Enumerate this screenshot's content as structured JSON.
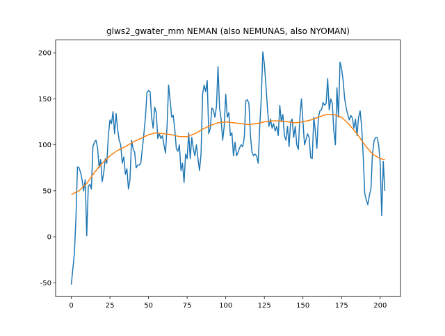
{
  "chart_data": {
    "type": "line",
    "title": "glws2_gwater_mm NEMAN (also NEMUNAS, also NYOMAN)",
    "x": [
      0,
      1,
      2,
      3,
      4,
      5,
      6,
      7,
      8,
      9,
      10,
      11,
      12,
      13,
      14,
      15,
      16,
      17,
      18,
      19,
      20,
      21,
      22,
      23,
      24,
      25,
      26,
      27,
      28,
      29,
      30,
      31,
      32,
      33,
      34,
      35,
      36,
      37,
      38,
      39,
      40,
      41,
      42,
      43,
      44,
      45,
      46,
      47,
      48,
      49,
      50,
      51,
      52,
      53,
      54,
      55,
      56,
      57,
      58,
      59,
      60,
      61,
      62,
      63,
      64,
      65,
      66,
      67,
      68,
      69,
      70,
      71,
      72,
      73,
      74,
      75,
      76,
      77,
      78,
      79,
      80,
      81,
      82,
      83,
      84,
      85,
      86,
      87,
      88,
      89,
      90,
      91,
      92,
      93,
      94,
      95,
      96,
      97,
      98,
      99,
      100,
      101,
      102,
      103,
      104,
      105,
      106,
      107,
      108,
      109,
      110,
      111,
      112,
      113,
      114,
      115,
      116,
      117,
      118,
      119,
      120,
      121,
      122,
      123,
      124,
      125,
      126,
      127,
      128,
      129,
      130,
      131,
      132,
      133,
      134,
      135,
      136,
      137,
      138,
      139,
      140,
      141,
      142,
      143,
      144,
      145,
      146,
      147,
      148,
      149,
      150,
      151,
      152,
      153,
      154,
      155,
      156,
      157,
      158,
      159,
      160,
      161,
      162,
      163,
      164,
      165,
      166,
      167,
      168,
      169,
      170,
      171,
      172,
      173,
      174,
      175,
      176,
      177,
      178,
      179,
      180,
      181,
      182,
      183,
      184,
      185,
      186,
      187,
      188,
      189,
      190,
      191,
      192,
      193,
      194,
      195,
      196,
      197,
      198,
      199,
      200,
      201,
      202,
      203
    ],
    "series": [
      {
        "color": "#1f77b4",
        "values": [
          -52,
          -35,
          -18,
          20,
          76,
          75,
          70,
          62,
          50,
          62,
          1,
          55,
          57,
          52,
          98,
          103,
          105,
          97,
          75,
          84,
          60,
          70,
          85,
          80,
          110,
          127,
          123,
          136,
          112,
          134,
          117,
          105,
          100,
          80,
          87,
          68,
          74,
          52,
          62,
          105,
          96,
          92,
          75,
          78,
          78,
          80,
          96,
          112,
          130,
          157,
          159,
          158,
          130,
          118,
          141,
          135,
          107,
          112,
          107,
          110,
          100,
          91,
          120,
          165,
          148,
          130,
          132,
          117,
          96,
          93,
          100,
          72,
          80,
          59,
          90,
          85,
          113,
          85,
          108,
          96,
          88,
          100,
          85,
          72,
          90,
          155,
          165,
          158,
          170,
          112,
          118,
          140,
          138,
          130,
          142,
          185,
          140,
          128,
          105,
          120,
          155,
          130,
          135,
          110,
          113,
          88,
          103,
          88,
          92,
          97,
          100,
          98,
          108,
          148,
          149,
          145,
          110,
          92,
          88,
          90,
          88,
          80,
          120,
          150,
          201,
          188,
          165,
          140,
          120,
          128,
          118,
          123,
          115,
          120,
          110,
          143,
          125,
          133,
          110,
          105,
          120,
          98,
          125,
          128,
          108,
          120,
          100,
          95,
          130,
          150,
          125,
          100,
          106,
          112,
          108,
          86,
          85,
          130,
          115,
          96,
          130,
          137,
          138,
          146,
          143,
          145,
          172,
          138,
          150,
          145,
          115,
          100,
          162,
          130,
          190,
          183,
          170,
          150,
          140,
          133,
          127,
          132,
          129,
          118,
          128,
          110,
          130,
          137,
          120,
          88,
          47,
          40,
          35,
          45,
          52,
          90,
          104,
          108,
          108,
          100,
          80,
          23,
          82,
          50
        ]
      },
      {
        "color": "#ff7f0e",
        "x": [
          0,
          5,
          10,
          15,
          20,
          25,
          30,
          35,
          40,
          45,
          50,
          55,
          60,
          65,
          70,
          75,
          80,
          85,
          90,
          95,
          100,
          105,
          110,
          115,
          120,
          125,
          130,
          135,
          140,
          145,
          150,
          155,
          160,
          165,
          170,
          175,
          180,
          185,
          190,
          195,
          200,
          203
        ],
        "values": [
          46,
          50,
          58,
          70,
          80,
          88,
          94,
          98,
          103,
          107,
          111,
          113,
          112,
          111,
          109,
          109,
          112,
          117,
          121,
          124,
          125,
          124,
          123,
          122,
          123,
          125,
          126,
          126,
          125,
          124,
          125,
          127,
          130,
          133,
          133,
          130,
          122,
          112,
          100,
          90,
          85,
          84
        ]
      }
    ],
    "xlim": [
      -10.15,
      213.15
    ],
    "xticks": [
      0,
      25,
      50,
      75,
      100,
      125,
      150,
      175,
      200
    ],
    "ylim": [
      -65,
      214
    ],
    "yticks": [
      -50,
      0,
      50,
      100,
      150,
      200
    ]
  }
}
